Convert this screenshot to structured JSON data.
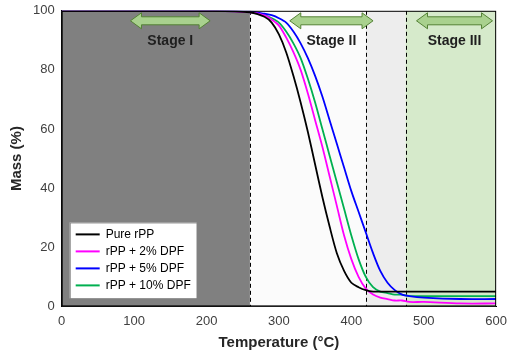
{
  "chart_data": {
    "type": "line",
    "x_label": "Temperature (°C)",
    "y_label": "Mass (%)",
    "x": [
      0,
      100,
      200,
      260,
      280,
      290,
      300,
      310,
      320,
      330,
      340,
      350,
      360,
      370,
      380,
      390,
      400,
      410,
      420,
      430,
      440,
      450,
      460,
      470,
      480,
      500,
      550,
      600
    ],
    "series": [
      {
        "name": "Pure rPP",
        "color": "#000000",
        "values": [
          100,
          100,
          100,
          99.5,
          98,
          96,
          92,
          86,
          78,
          69,
          59,
          48,
          37,
          27,
          18,
          12,
          8,
          6.5,
          5.5,
          5,
          5,
          5,
          5,
          5,
          5,
          5,
          5,
          5
        ]
      },
      {
        "name": "rPP + 2% DPF",
        "color": "#ff00ff",
        "values": [
          100,
          100,
          100,
          99.5,
          98.5,
          97,
          95,
          91,
          86,
          80,
          72,
          63,
          54,
          44,
          34,
          24,
          16,
          10,
          6,
          4,
          3,
          2.5,
          2,
          2,
          1.5,
          1.5,
          1,
          1
        ]
      },
      {
        "name": "rPP + 5% DPF",
        "color": "#0000ff",
        "values": [
          100,
          100,
          100,
          99.8,
          99,
          98.5,
          97.5,
          96,
          93,
          89,
          84,
          78,
          71,
          63,
          55,
          47,
          39,
          32,
          25,
          18,
          12,
          8,
          5.5,
          4,
          3.5,
          3,
          2.5,
          2.5
        ]
      },
      {
        "name": "rPP + 10% DPF",
        "color": "#00b050",
        "values": [
          100,
          100,
          100,
          99.5,
          98.5,
          97.5,
          96,
          93,
          89,
          84,
          77,
          69,
          60,
          51,
          42,
          33,
          24,
          16,
          10,
          6.5,
          5,
          4.5,
          4,
          4,
          3.5,
          3.5,
          3.5,
          3.5
        ]
      }
    ],
    "xlim": [
      0,
      600
    ],
    "xticks": [
      0,
      100,
      200,
      300,
      400,
      500,
      600
    ],
    "ylim": [
      0,
      100
    ],
    "yticks": [
      0,
      20,
      40,
      60,
      80,
      100
    ],
    "grid": false,
    "legend": "lower left",
    "regions": [
      {
        "from": 0,
        "to": 260,
        "color": "#808080"
      },
      {
        "from": 260,
        "to": 420,
        "color": "#fbfbfb"
      },
      {
        "from": 420,
        "to": 475,
        "color": "#ededed"
      },
      {
        "from": 475,
        "to": 600,
        "color": "#d6eacb"
      }
    ],
    "dashed_lines": [
      260,
      420,
      475
    ],
    "stages": [
      {
        "label": "Stage I",
        "from": 95,
        "to": 205
      },
      {
        "label": "Stage II",
        "from": 315,
        "to": 430
      },
      {
        "label": "Stage III",
        "from": 490,
        "to": 595
      }
    ]
  }
}
